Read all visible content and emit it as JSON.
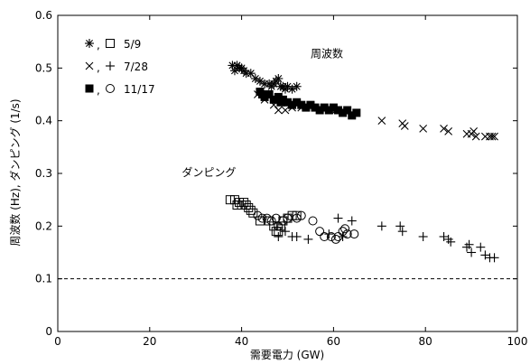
{
  "chart_data": {
    "type": "scatter",
    "xlabel": "需要電力 (GW)",
    "ylabel": "周波数 (Hz), ダンピング (1/s)",
    "xlim": [
      0,
      100
    ],
    "ylim": [
      0,
      0.6
    ],
    "xticks": [
      0,
      20,
      40,
      60,
      80,
      100
    ],
    "xtick_labels": [
      "0",
      "20",
      "40",
      "60",
      "80",
      "100"
    ],
    "yticks": [
      0,
      0.1,
      0.2,
      0.3,
      0.4,
      0.5,
      0.6
    ],
    "ytick_labels": [
      "0",
      "0.1",
      "0.2",
      "0.3",
      "0.4",
      "0.5",
      "0.6"
    ],
    "grid": false,
    "legend_position": "top-left",
    "legend": [
      {
        "label": "5/9",
        "frequency_marker": "asterisk",
        "damping_marker": "open-square"
      },
      {
        "label": "7/28",
        "frequency_marker": "x",
        "damping_marker": "plus"
      },
      {
        "label": "11/17",
        "frequency_marker": "filled-square",
        "damping_marker": "open-circle"
      }
    ],
    "legend_separator": ",",
    "annotations": [
      {
        "text": "周波数",
        "x": 55,
        "y": 0.52
      },
      {
        "text": "ダンピング",
        "x": 27,
        "y": 0.295
      }
    ],
    "reference_line": {
      "y": 0.1,
      "style": "dashed"
    },
    "series": [
      {
        "name": "5/9",
        "quantity": "frequency",
        "marker": "asterisk",
        "points": [
          [
            38,
            0.505
          ],
          [
            38.5,
            0.495
          ],
          [
            39,
            0.505
          ],
          [
            39.5,
            0.5
          ],
          [
            40,
            0.5
          ],
          [
            40.5,
            0.495
          ],
          [
            41,
            0.49
          ],
          [
            42,
            0.49
          ],
          [
            43,
            0.48
          ],
          [
            44,
            0.475
          ],
          [
            45,
            0.47
          ],
          [
            46,
            0.47
          ],
          [
            46.5,
            0.465
          ],
          [
            47,
            0.47
          ],
          [
            47.5,
            0.475
          ],
          [
            48,
            0.48
          ],
          [
            48.5,
            0.465
          ],
          [
            49,
            0.465
          ],
          [
            49.5,
            0.46
          ],
          [
            50,
            0.465
          ],
          [
            51,
            0.46
          ],
          [
            52,
            0.465
          ]
        ]
      },
      {
        "name": "5/9",
        "quantity": "damping",
        "marker": "open-square",
        "points": [
          [
            37.5,
            0.25
          ],
          [
            38.5,
            0.25
          ],
          [
            39,
            0.24
          ],
          [
            39.5,
            0.245
          ],
          [
            40,
            0.24
          ],
          [
            40.5,
            0.245
          ],
          [
            41,
            0.24
          ],
          [
            41.5,
            0.235
          ],
          [
            42,
            0.23
          ],
          [
            42.5,
            0.225
          ],
          [
            44,
            0.21
          ],
          [
            46,
            0.21
          ],
          [
            47,
            0.2
          ],
          [
            47.5,
            0.19
          ],
          [
            48,
            0.19
          ],
          [
            48.5,
            0.2
          ],
          [
            49,
            0.21
          ],
          [
            50,
            0.215
          ],
          [
            51,
            0.22
          ],
          [
            52,
            0.22
          ]
        ]
      },
      {
        "name": "7/28",
        "quantity": "frequency",
        "marker": "x",
        "points": [
          [
            43.5,
            0.45
          ],
          [
            45,
            0.44
          ],
          [
            47,
            0.43
          ],
          [
            48,
            0.42
          ],
          [
            49.5,
            0.42
          ],
          [
            51,
            0.425
          ],
          [
            53,
            0.425
          ],
          [
            57,
            0.42
          ],
          [
            60.5,
            0.42
          ],
          [
            64,
            0.415
          ],
          [
            70.5,
            0.4
          ],
          [
            75,
            0.395
          ],
          [
            75.5,
            0.39
          ],
          [
            79.5,
            0.385
          ],
          [
            84,
            0.385
          ],
          [
            85,
            0.38
          ],
          [
            89,
            0.375
          ],
          [
            90,
            0.375
          ],
          [
            90.5,
            0.38
          ],
          [
            91,
            0.37
          ],
          [
            93,
            0.37
          ],
          [
            94,
            0.37
          ],
          [
            94.5,
            0.37
          ],
          [
            95,
            0.37
          ]
        ]
      },
      {
        "name": "7/28",
        "quantity": "damping",
        "marker": "plus",
        "points": [
          [
            48,
            0.18
          ],
          [
            49.5,
            0.19
          ],
          [
            51,
            0.18
          ],
          [
            52,
            0.18
          ],
          [
            54.5,
            0.175
          ],
          [
            59,
            0.185
          ],
          [
            61,
            0.215
          ],
          [
            62,
            0.18
          ],
          [
            64,
            0.21
          ],
          [
            70.5,
            0.2
          ],
          [
            74.5,
            0.2
          ],
          [
            75,
            0.19
          ],
          [
            79.5,
            0.18
          ],
          [
            84,
            0.18
          ],
          [
            85,
            0.175
          ],
          [
            85.5,
            0.17
          ],
          [
            89,
            0.16
          ],
          [
            89.5,
            0.165
          ],
          [
            90,
            0.15
          ],
          [
            92,
            0.16
          ],
          [
            93,
            0.145
          ],
          [
            94,
            0.14
          ],
          [
            95,
            0.14
          ]
        ]
      },
      {
        "name": "11/17",
        "quantity": "frequency",
        "marker": "filled-square",
        "points": [
          [
            44,
            0.455
          ],
          [
            44.5,
            0.45
          ],
          [
            45,
            0.445
          ],
          [
            46,
            0.45
          ],
          [
            47,
            0.44
          ],
          [
            48,
            0.445
          ],
          [
            48.5,
            0.435
          ],
          [
            49,
            0.44
          ],
          [
            50,
            0.435
          ],
          [
            51,
            0.43
          ],
          [
            52,
            0.435
          ],
          [
            53,
            0.43
          ],
          [
            54,
            0.425
          ],
          [
            55,
            0.43
          ],
          [
            56,
            0.425
          ],
          [
            57,
            0.42
          ],
          [
            58,
            0.425
          ],
          [
            59,
            0.42
          ],
          [
            60,
            0.425
          ],
          [
            61,
            0.42
          ],
          [
            62,
            0.415
          ],
          [
            63,
            0.42
          ],
          [
            64,
            0.41
          ],
          [
            65,
            0.415
          ]
        ]
      },
      {
        "name": "11/17",
        "quantity": "damping",
        "marker": "open-circle",
        "points": [
          [
            43.5,
            0.22
          ],
          [
            44.5,
            0.215
          ],
          [
            45.5,
            0.215
          ],
          [
            46.5,
            0.21
          ],
          [
            47.5,
            0.215
          ],
          [
            48,
            0.2
          ],
          [
            49,
            0.21
          ],
          [
            50,
            0.215
          ],
          [
            52,
            0.215
          ],
          [
            53,
            0.22
          ],
          [
            55.5,
            0.21
          ],
          [
            57,
            0.19
          ],
          [
            58,
            0.18
          ],
          [
            59.5,
            0.18
          ],
          [
            60.5,
            0.175
          ],
          [
            61,
            0.18
          ],
          [
            62,
            0.19
          ],
          [
            62.5,
            0.195
          ],
          [
            63,
            0.185
          ],
          [
            64.5,
            0.185
          ]
        ]
      }
    ]
  }
}
